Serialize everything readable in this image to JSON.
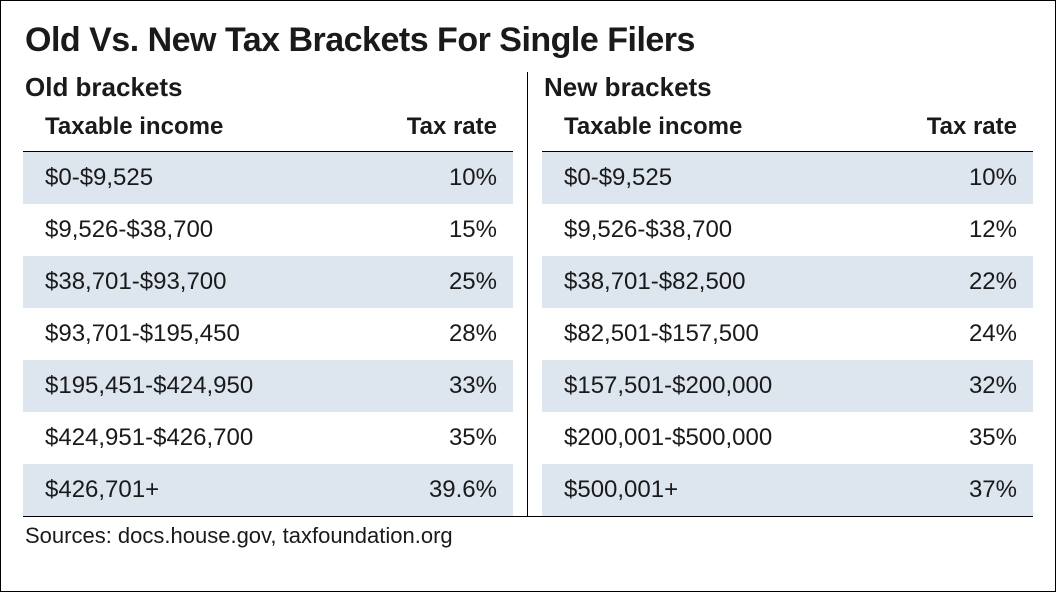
{
  "title": "Old Vs. New Tax Brackets For Single Filers",
  "sources": "Sources: docs.house.gov, taxfoundation.org",
  "columns": {
    "income": "Taxable income",
    "rate": "Tax rate"
  },
  "styling": {
    "type": "table",
    "frame_border_color": "#000000",
    "background_color": "#ffffff",
    "stripe_color": "#dde5ee",
    "text_color": "#1a1a1a",
    "title_fontsize": 34,
    "panel_title_fontsize": 26,
    "header_fontsize": 24,
    "cell_fontsize": 24,
    "sources_fontsize": 22,
    "font_family": "Helvetica Neue Condensed / Arial Narrow",
    "column_align": {
      "income": "left",
      "rate": "right"
    }
  },
  "left": {
    "title": "Old brackets",
    "rows": [
      {
        "income": "$0-$9,525",
        "rate": "10%"
      },
      {
        "income": "$9,526-$38,700",
        "rate": "15%"
      },
      {
        "income": "$38,701-$93,700",
        "rate": "25%"
      },
      {
        "income": "$93,701-$195,450",
        "rate": "28%"
      },
      {
        "income": "$195,451-$424,950",
        "rate": "33%"
      },
      {
        "income": "$424,951-$426,700",
        "rate": "35%"
      },
      {
        "income": "$426,701+",
        "rate": "39.6%"
      }
    ]
  },
  "right": {
    "title": "New brackets",
    "rows": [
      {
        "income": "$0-$9,525",
        "rate": "10%"
      },
      {
        "income": "$9,526-$38,700",
        "rate": "12%"
      },
      {
        "income": "$38,701-$82,500",
        "rate": "22%"
      },
      {
        "income": "$82,501-$157,500",
        "rate": "24%"
      },
      {
        "income": "$157,501-$200,000",
        "rate": "32%"
      },
      {
        "income": "$200,001-$500,000",
        "rate": "35%"
      },
      {
        "income": "$500,001+",
        "rate": "37%"
      }
    ]
  }
}
